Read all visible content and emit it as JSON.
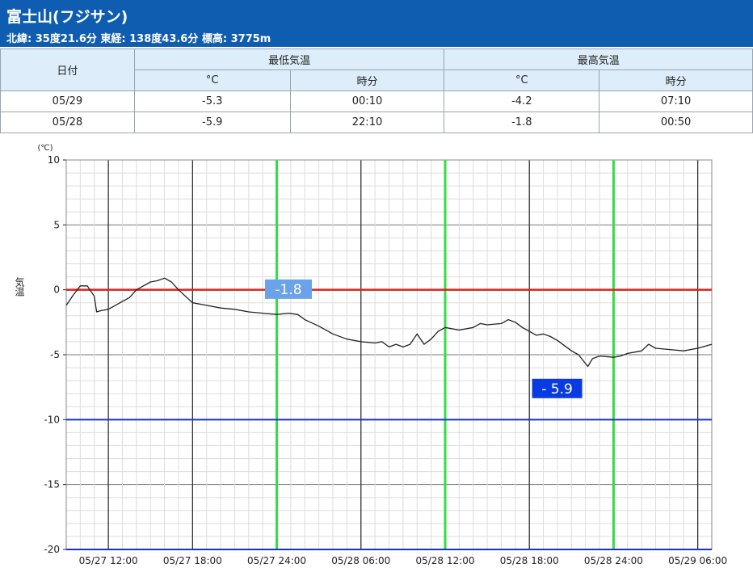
{
  "header": {
    "title": "富士山(フジサン)",
    "location": "北緯: 35度21.6分 東経: 138度43.6分 標高: 3775m"
  },
  "table": {
    "date_header": "日付",
    "min_group": "最低気温",
    "max_group": "最高気温",
    "sub_headers": [
      "°C",
      "時分",
      "°C",
      "時分"
    ],
    "rows": [
      {
        "date": "05/29",
        "min_temp": "-5.3",
        "min_time": "00:10",
        "max_temp": "-4.2",
        "max_time": "07:10"
      },
      {
        "date": "05/28",
        "min_temp": "-5.9",
        "min_time": "22:10",
        "max_temp": "-1.8",
        "max_time": "00:50"
      }
    ]
  },
  "colors": {
    "header_bg": "#0f5db0",
    "zero_line": "#e02020",
    "minus_ten_line": "#1a2fd0",
    "day_boundary_line": "#33dd44",
    "max_label_bg": "#6aa3ea",
    "min_label_bg": "#0a3be0",
    "series": "#222222"
  },
  "chart_data": {
    "type": "line",
    "unit_label": "(℃)",
    "ylabel": "気温",
    "ylim": [
      -20,
      10
    ],
    "yticks": [
      10,
      5,
      0,
      -5,
      -10,
      -15,
      -20
    ],
    "x_range": [
      "05/27 09:00",
      "05/29 07:00"
    ],
    "x_tick_labels": [
      {
        "time": "05/27 12:00",
        "label": "05/27 12:00"
      },
      {
        "time": "05/27 18:00",
        "label": "05/27 18:00"
      },
      {
        "time": "05/28 00:00",
        "label": "05/27 24:00"
      },
      {
        "time": "05/28 06:00",
        "label": "05/28 06:00"
      },
      {
        "time": "05/28 12:00",
        "label": "05/28 12:00"
      },
      {
        "time": "05/28 18:00",
        "label": "05/28 18:00"
      },
      {
        "time": "05/29 00:00",
        "label": "05/28 24:00"
      },
      {
        "time": "05/29 06:00",
        "label": "05/29 06:00"
      }
    ],
    "day_boundaries": [
      "05/28 00:00",
      "05/28 12:00",
      "05/29 00:00"
    ],
    "reference_lines": [
      0,
      -10
    ],
    "annotations": [
      {
        "text": "-1.8",
        "time": "05/28 00:50",
        "y": 0.05,
        "style": "max"
      },
      {
        "text": "- 5.9",
        "time": "05/28 22:10",
        "y": -7.6,
        "style": "min"
      }
    ],
    "series": [
      {
        "points": [
          [
            "05/27 09:00",
            -1.2
          ],
          [
            "05/27 09:30",
            -0.4
          ],
          [
            "05/27 10:00",
            0.3
          ],
          [
            "05/27 10:30",
            0.3
          ],
          [
            "05/27 11:00",
            -0.5
          ],
          [
            "05/27 11:10",
            -1.7
          ],
          [
            "05/27 11:30",
            -1.6
          ],
          [
            "05/27 12:00",
            -1.5
          ],
          [
            "05/27 12:30",
            -1.2
          ],
          [
            "05/27 13:00",
            -0.9
          ],
          [
            "05/27 13:30",
            -0.6
          ],
          [
            "05/27 14:00",
            0.0
          ],
          [
            "05/27 14:30",
            0.3
          ],
          [
            "05/27 15:00",
            0.6
          ],
          [
            "05/27 15:30",
            0.7
          ],
          [
            "05/27 16:00",
            0.9
          ],
          [
            "05/27 16:30",
            0.6
          ],
          [
            "05/27 17:00",
            0.0
          ],
          [
            "05/27 17:30",
            -0.5
          ],
          [
            "05/27 18:00",
            -1.0
          ],
          [
            "05/27 19:00",
            -1.2
          ],
          [
            "05/27 20:00",
            -1.4
          ],
          [
            "05/27 21:00",
            -1.5
          ],
          [
            "05/27 22:00",
            -1.7
          ],
          [
            "05/27 23:00",
            -1.8
          ],
          [
            "05/28 00:00",
            -1.9
          ],
          [
            "05/28 00:50",
            -1.8
          ],
          [
            "05/28 01:30",
            -1.9
          ],
          [
            "05/28 02:00",
            -2.3
          ],
          [
            "05/28 03:00",
            -2.8
          ],
          [
            "05/28 04:00",
            -3.4
          ],
          [
            "05/28 05:00",
            -3.8
          ],
          [
            "05/28 06:00",
            -4.0
          ],
          [
            "05/28 07:00",
            -4.1
          ],
          [
            "05/28 07:30",
            -4.0
          ],
          [
            "05/28 08:00",
            -4.4
          ],
          [
            "05/28 08:30",
            -4.2
          ],
          [
            "05/28 09:00",
            -4.4
          ],
          [
            "05/28 09:30",
            -4.2
          ],
          [
            "05/28 10:00",
            -3.4
          ],
          [
            "05/28 10:30",
            -4.2
          ],
          [
            "05/28 11:00",
            -3.8
          ],
          [
            "05/28 11:30",
            -3.2
          ],
          [
            "05/28 12:00",
            -2.9
          ],
          [
            "05/28 13:00",
            -3.1
          ],
          [
            "05/28 14:00",
            -2.9
          ],
          [
            "05/28 14:30",
            -2.6
          ],
          [
            "05/28 15:00",
            -2.7
          ],
          [
            "05/28 16:00",
            -2.6
          ],
          [
            "05/28 16:30",
            -2.3
          ],
          [
            "05/28 17:00",
            -2.5
          ],
          [
            "05/28 17:30",
            -2.9
          ],
          [
            "05/28 18:00",
            -3.2
          ],
          [
            "05/28 18:30",
            -3.5
          ],
          [
            "05/28 19:00",
            -3.4
          ],
          [
            "05/28 19:30",
            -3.6
          ],
          [
            "05/28 20:00",
            -3.9
          ],
          [
            "05/28 21:00",
            -4.7
          ],
          [
            "05/28 21:30",
            -5.0
          ],
          [
            "05/28 22:10",
            -5.9
          ],
          [
            "05/28 22:30",
            -5.3
          ],
          [
            "05/28 23:00",
            -5.1
          ],
          [
            "05/29 00:00",
            -5.2
          ],
          [
            "05/29 00:30",
            -5.1
          ],
          [
            "05/29 01:00",
            -4.9
          ],
          [
            "05/29 01:30",
            -4.8
          ],
          [
            "05/29 02:00",
            -4.7
          ],
          [
            "05/29 02:30",
            -4.2
          ],
          [
            "05/29 03:00",
            -4.5
          ],
          [
            "05/29 04:00",
            -4.6
          ],
          [
            "05/29 05:00",
            -4.7
          ],
          [
            "05/29 06:00",
            -4.5
          ],
          [
            "05/29 07:00",
            -4.2
          ]
        ]
      }
    ]
  }
}
